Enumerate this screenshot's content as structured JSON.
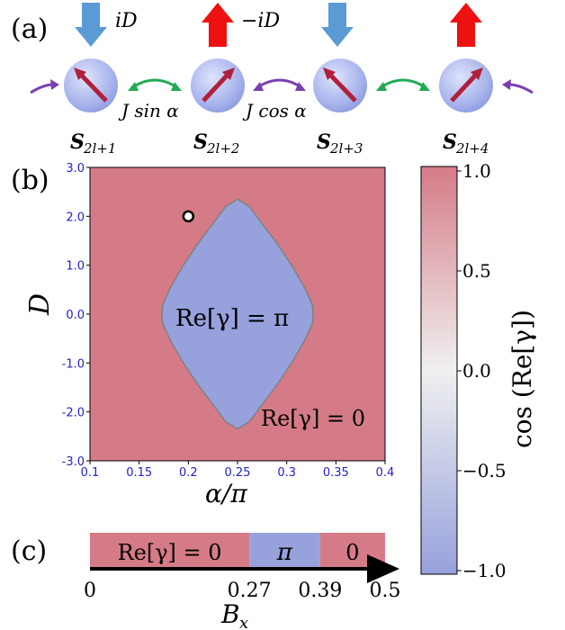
{
  "panels": {
    "a": {
      "label": "(a)",
      "field_labels": [
        "iD",
        "−iD"
      ],
      "couplings": [
        "J sin α",
        "J cos α"
      ],
      "spins": [
        {
          "label": "S",
          "sub": "2l+1",
          "field": "down"
        },
        {
          "label": "S",
          "sub": "2l+2",
          "field": "up"
        },
        {
          "label": "S",
          "sub": "2l+3",
          "field": "down"
        },
        {
          "label": "S",
          "sub": "2l+4",
          "field": "up"
        }
      ],
      "colors": {
        "down_arrow": "#5b9bd5",
        "up_arrow": "#ee1111",
        "sphere": "#a8b8f0",
        "spin_arrow": "#b0203a",
        "green_arc": "#22aa55",
        "purple_arc": "#7a3fb0"
      }
    },
    "b": {
      "label": "(b)",
      "region_pi_label": "Re[γ] = π",
      "region_zero_label": "Re[γ] = 0",
      "colors": {
        "pi": "#97a1dc",
        "zero": "#d57b87",
        "boundary": "#808080"
      }
    },
    "c": {
      "label": "(c)",
      "xlabel": "B",
      "xlabel_sub": "x",
      "segments": [
        {
          "label": "Re[γ] = 0",
          "from": 0,
          "to": 0.27,
          "phase": "zero"
        },
        {
          "label": "π",
          "from": 0.27,
          "to": 0.39,
          "phase": "pi"
        },
        {
          "label": "0",
          "from": 0.39,
          "to": 0.5,
          "phase": "zero"
        }
      ],
      "ticks": [
        "0",
        "0.27",
        "0.39",
        "0.5"
      ]
    },
    "colorbar": {
      "label": "cos (Re[γ])",
      "ticks": [
        "1.0",
        "0.5",
        "0.0",
        "−0.5",
        "−1.0"
      ],
      "top_color": "#d57b87",
      "mid_color": "#f0f0f0",
      "bottom_color": "#97a1dc"
    }
  },
  "chart_data": {
    "type": "heatmap",
    "xlabel": "α/π",
    "ylabel": "D",
    "xlim": [
      0.1,
      0.4
    ],
    "ylim": [
      -3.0,
      3.0
    ],
    "xticks": [
      "0.1",
      "0.15",
      "0.2",
      "0.25",
      "0.3",
      "0.35",
      "0.4"
    ],
    "yticks": [
      "3.0",
      "2.0",
      "1.0",
      "0.0",
      "-1.0",
      "-2.0",
      "-3.0"
    ],
    "marker": {
      "x": 0.2,
      "y": 2.0
    },
    "pi_region_boundary": [
      [
        0.25,
        2.35
      ],
      [
        0.262,
        2.2
      ],
      [
        0.275,
        1.85
      ],
      [
        0.29,
        1.45
      ],
      [
        0.305,
        1.0
      ],
      [
        0.318,
        0.55
      ],
      [
        0.326,
        0.2
      ],
      [
        0.327,
        0.0
      ],
      [
        0.326,
        -0.2
      ],
      [
        0.318,
        -0.55
      ],
      [
        0.305,
        -1.0
      ],
      [
        0.29,
        -1.45
      ],
      [
        0.275,
        -1.85
      ],
      [
        0.262,
        -2.2
      ],
      [
        0.25,
        -2.35
      ],
      [
        0.238,
        -2.2
      ],
      [
        0.225,
        -1.85
      ],
      [
        0.21,
        -1.45
      ],
      [
        0.195,
        -1.0
      ],
      [
        0.182,
        -0.55
      ],
      [
        0.174,
        -0.2
      ],
      [
        0.173,
        0.0
      ],
      [
        0.174,
        0.2
      ],
      [
        0.182,
        0.55
      ],
      [
        0.195,
        1.0
      ],
      [
        0.21,
        1.45
      ],
      [
        0.225,
        1.85
      ],
      [
        0.238,
        2.2
      ]
    ],
    "colorbar_range": [
      -1.0,
      1.0
    ]
  }
}
